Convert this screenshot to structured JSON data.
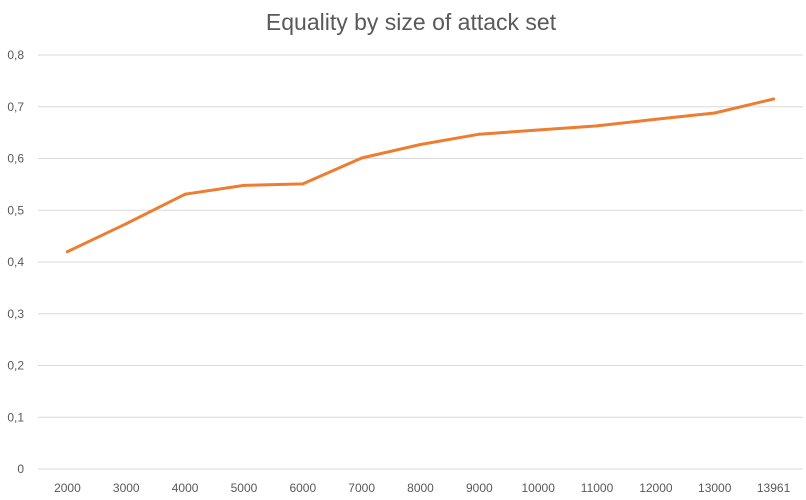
{
  "chart_data": {
    "type": "line",
    "title": "Equality by size of attack set",
    "xlabel": "",
    "ylabel": "",
    "categories": [
      "2000",
      "3000",
      "4000",
      "5000",
      "6000",
      "7000",
      "8000",
      "9000",
      "10000",
      "11000",
      "12000",
      "13000",
      "13961"
    ],
    "series": [
      {
        "values": [
          0.42,
          0.474,
          0.531,
          0.548,
          0.551,
          0.601,
          0.627,
          0.647,
          0.655,
          0.663,
          0.676,
          0.688,
          0.715
        ],
        "color": "#ed7d31"
      }
    ],
    "ylim": [
      0,
      0.8
    ],
    "yticks": [
      "0",
      "0,1",
      "0,2",
      "0,3",
      "0,4",
      "0,5",
      "0,6",
      "0,7",
      "0,8"
    ],
    "grid": true,
    "legend": "none"
  }
}
